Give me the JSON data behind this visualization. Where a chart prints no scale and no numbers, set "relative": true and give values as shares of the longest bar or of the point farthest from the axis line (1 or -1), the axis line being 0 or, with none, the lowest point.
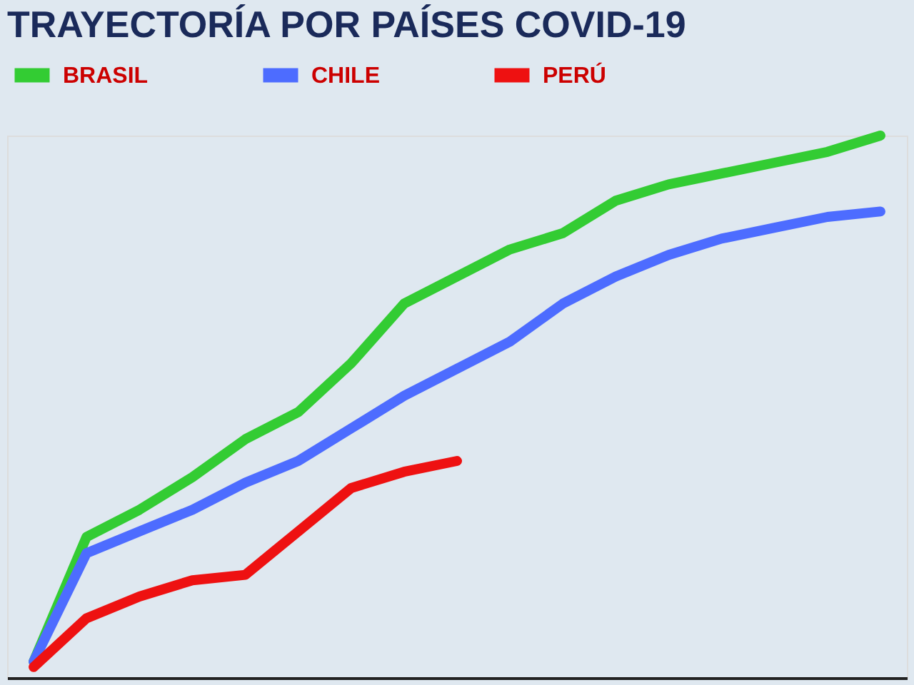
{
  "chart_data": {
    "type": "line",
    "title": "TRAYECTORÍA POR PAÍSES COVID-19",
    "relative": true,
    "legend": "top",
    "marker": "none",
    "line_style": "solid",
    "categories": [
      null,
      null,
      null,
      null,
      null,
      null,
      null,
      null,
      null,
      null,
      null,
      null,
      null,
      null,
      null,
      null,
      null
    ],
    "series": [
      {
        "name": "BRASIL",
        "color": "#33cc33",
        "values": [
          0.03,
          0.26,
          0.31,
          0.37,
          0.44,
          0.49,
          0.58,
          0.69,
          0.74,
          0.79,
          0.82,
          0.88,
          0.91,
          0.93,
          0.95,
          0.97,
          1
        ]
      },
      {
        "name": "CHILE",
        "color": "#4d6cff",
        "values": [
          0.03,
          0.23,
          0.27,
          0.31,
          0.36,
          0.4,
          0.46,
          0.52,
          0.57,
          0.62,
          0.69,
          0.74,
          0.78,
          0.81,
          0.83,
          0.85,
          0.86
        ]
      },
      {
        "name": "PERÚ",
        "color": "#ee1111",
        "values": [
          0.02,
          0.11,
          0.15,
          0.18,
          0.19,
          0.27,
          0.35,
          0.38,
          0.4,
          null,
          null,
          null,
          null,
          null,
          null,
          null,
          null
        ]
      }
    ]
  }
}
